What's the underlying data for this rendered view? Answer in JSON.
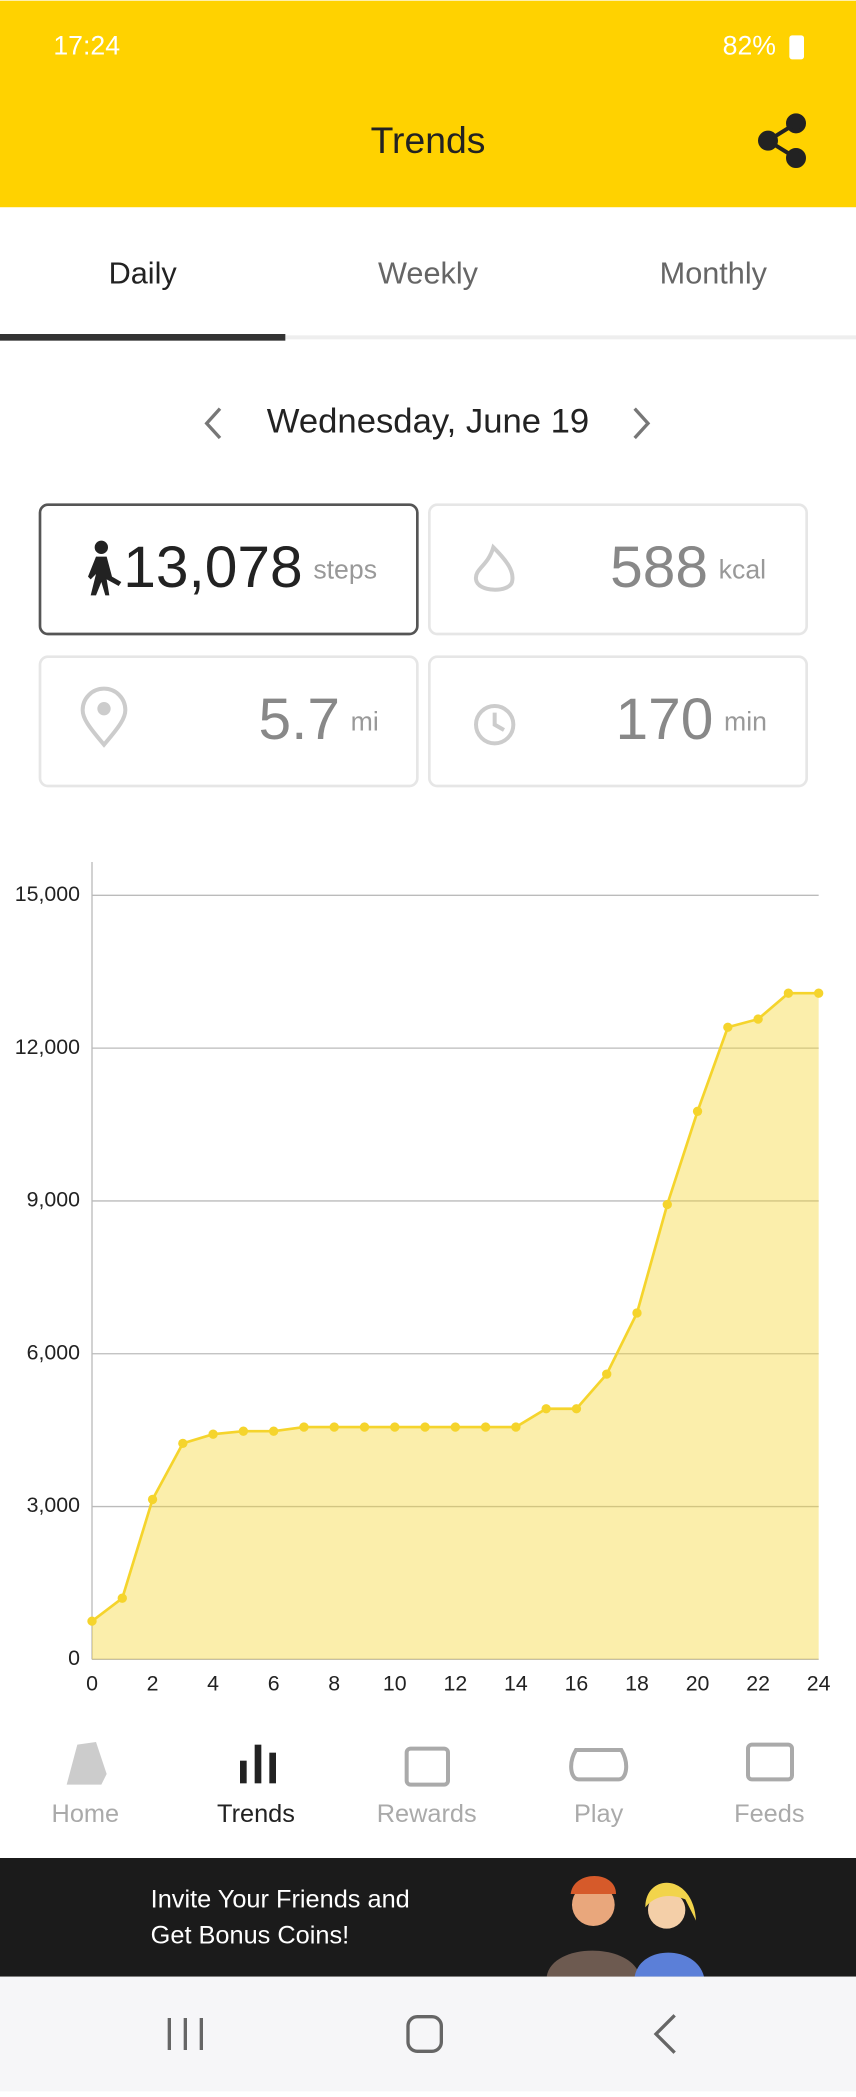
{
  "status_bar": {
    "time": "17:24",
    "battery": "82%"
  },
  "header": {
    "title": "Trends"
  },
  "tabs": [
    "Daily",
    "Weekly",
    "Monthly"
  ],
  "date": "Wednesday, June 19",
  "stats": [
    {
      "value": "13,078",
      "unit": "steps"
    },
    {
      "value": "588",
      "unit": "kcal"
    },
    {
      "value": "5.7",
      "unit": "mi"
    },
    {
      "value": "170",
      "unit": "min"
    }
  ],
  "chart_data": {
    "type": "area",
    "x": [
      0,
      1,
      2,
      3,
      4,
      5,
      6,
      7,
      8,
      9,
      10,
      11,
      12,
      13,
      14,
      15,
      16,
      17,
      18,
      19,
      20,
      21,
      22,
      23,
      24
    ],
    "values": [
      750,
      1200,
      3140,
      4240,
      4420,
      4480,
      4480,
      4560,
      4560,
      4560,
      4560,
      4560,
      4560,
      4560,
      4560,
      4920,
      4920,
      5600,
      6800,
      8930,
      10760,
      12410,
      12570,
      13078,
      13078
    ],
    "color": "#f5d42c",
    "xlim": [
      0,
      24
    ],
    "ylim": [
      0,
      15000
    ],
    "yticks": [
      0,
      {
        "value": 3000,
        "label": "3,000"
      },
      {
        "value": 6000,
        "label": "6,000"
      },
      {
        "value": 9000,
        "label": "9,000"
      },
      {
        "value": 12000,
        "label": "12,000"
      },
      {
        "value": 15000,
        "label": "15,000"
      }
    ],
    "xticks": [
      0,
      2,
      4,
      6,
      8,
      10,
      12,
      14,
      16,
      18,
      20,
      22,
      24
    ],
    "grid": true
  },
  "nav": [
    "Home",
    "Trends",
    "Rewards",
    "Play",
    "Feeds"
  ],
  "banner": {
    "lines": [
      "Invite Your Friends and",
      "Get Bonus Coins!"
    ]
  }
}
